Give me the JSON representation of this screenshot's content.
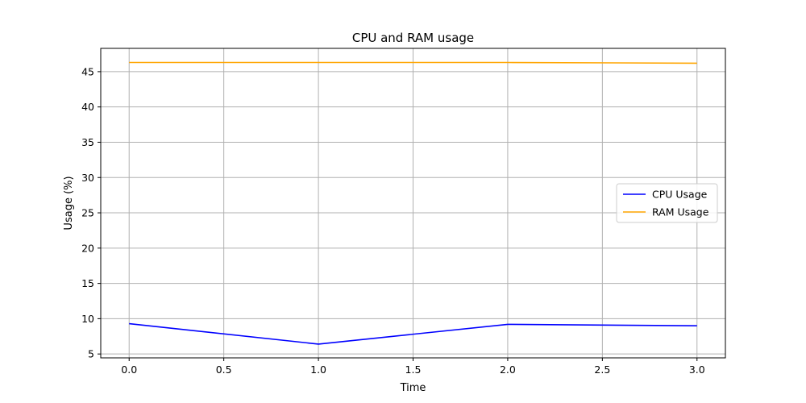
{
  "chart_data": {
    "type": "line",
    "title": "CPU and RAM usage",
    "xlabel": "Time",
    "ylabel": "Usage (%)",
    "x": [
      0,
      1,
      2,
      3
    ],
    "series": [
      {
        "name": "CPU Usage",
        "color": "#0000ff",
        "values": [
          9.3,
          6.4,
          9.2,
          9.0
        ]
      },
      {
        "name": "RAM Usage",
        "color": "#ffa500",
        "values": [
          46.3,
          46.3,
          46.3,
          46.2
        ]
      }
    ],
    "xlim": [
      -0.15,
      3.15
    ],
    "ylim": [
      4.45,
      48.3
    ],
    "xticks": [
      0.0,
      0.5,
      1.0,
      1.5,
      2.0,
      2.5,
      3.0
    ],
    "xtick_labels": [
      "0.0",
      "0.5",
      "1.0",
      "1.5",
      "2.0",
      "2.5",
      "3.0"
    ],
    "yticks": [
      5,
      10,
      15,
      20,
      25,
      30,
      35,
      40,
      45
    ],
    "ytick_labels": [
      "5",
      "10",
      "15",
      "20",
      "25",
      "30",
      "35",
      "40",
      "45"
    ],
    "grid": true,
    "legend_position": "center-right"
  }
}
